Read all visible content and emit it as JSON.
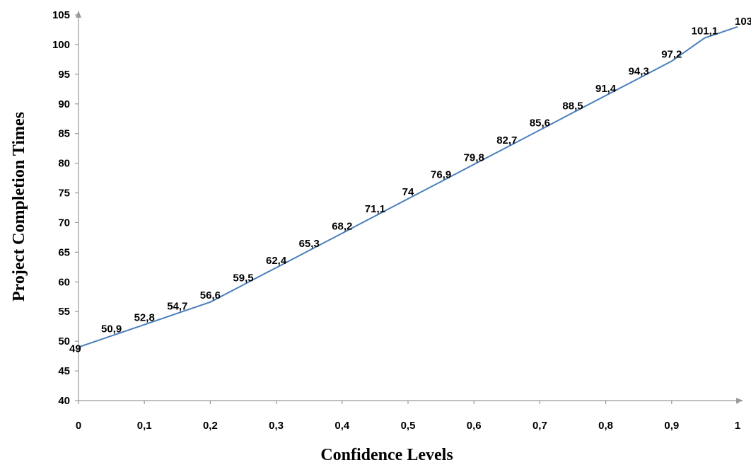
{
  "chart_data": {
    "type": "line",
    "title": "",
    "xlabel": "Confidence Levels",
    "ylabel": "Project Completion Times",
    "xlim": [
      0,
      1
    ],
    "ylim": [
      40,
      105
    ],
    "x_ticks": [
      0,
      0.1,
      0.2,
      0.3,
      0.4,
      0.5,
      0.6,
      0.7,
      0.8,
      0.9,
      1
    ],
    "x_tick_labels": [
      "0",
      "0,1",
      "0,2",
      "0,3",
      "0,4",
      "0,5",
      "0,6",
      "0,7",
      "0,8",
      "0,9",
      "1"
    ],
    "y_ticks": [
      40,
      45,
      50,
      55,
      60,
      65,
      70,
      75,
      80,
      85,
      90,
      95,
      100,
      105
    ],
    "y_tick_labels": [
      "40",
      "45",
      "50",
      "55",
      "60",
      "65",
      "70",
      "75",
      "80",
      "85",
      "90",
      "95",
      "100",
      "105"
    ],
    "grid": false,
    "legend": "none",
    "series": [
      {
        "color": "#4a7ebb",
        "x": [
          0,
          0.05,
          0.1,
          0.15,
          0.2,
          0.25,
          0.3,
          0.35,
          0.4,
          0.45,
          0.5,
          0.55,
          0.6,
          0.65,
          0.7,
          0.75,
          0.8,
          0.85,
          0.9,
          0.95,
          1
        ],
        "values": [
          49,
          50.9,
          52.8,
          54.7,
          56.6,
          59.5,
          62.4,
          65.3,
          68.2,
          71.1,
          74,
          76.9,
          79.8,
          82.7,
          85.6,
          88.5,
          91.4,
          94.3,
          97.2,
          101.1,
          103
        ],
        "labels": [
          "49",
          "50,9",
          "52,8",
          "54,7",
          "56,6",
          "59,5",
          "62,4",
          "65,3",
          "68,2",
          "71,1",
          "74",
          "76,9",
          "79,8",
          "82,7",
          "85,6",
          "88,5",
          "91,4",
          "94,3",
          "97,2",
          "101,1",
          "103"
        ]
      }
    ]
  }
}
